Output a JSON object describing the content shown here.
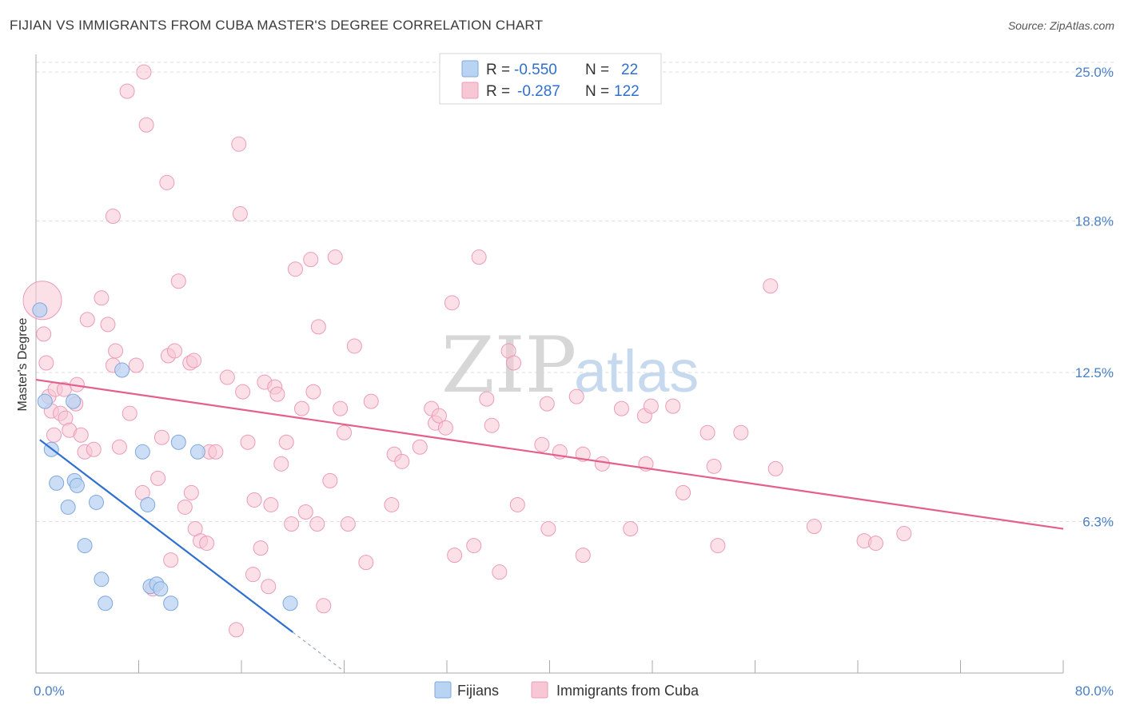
{
  "title": "FIJIAN VS IMMIGRANTS FROM CUBA MASTER'S DEGREE CORRELATION CHART",
  "source": "Source: ZipAtlas.com",
  "colors": {
    "fijians_fill": "#b9d3f2",
    "fijians_stroke": "#7ea8de",
    "fijians_line": "#2e6fd1",
    "cuba_fill": "#f7c7d6",
    "cuba_stroke": "#ec9bb6",
    "cuba_line": "#e55f8d",
    "grid": "#dddddd",
    "tick_text": "#4a7fc9"
  },
  "legend": {
    "row1": {
      "r_label": "R =",
      "r_value": "-0.550",
      "n_label": "N =",
      "n_value": "22"
    },
    "row2": {
      "r_label": "R =",
      "r_value": "-0.287",
      "n_label": "N =",
      "n_value": "122"
    }
  },
  "bottom_legend": {
    "series1": "Fijians",
    "series2": "Immigrants from Cuba"
  },
  "watermark": {
    "zip": "ZIP",
    "atlas": "atlas"
  },
  "chart_data": {
    "type": "scatter",
    "xlabel": "",
    "ylabel": "Master's Degree",
    "xlim": [
      0,
      80
    ],
    "ylim": [
      0,
      26
    ],
    "x_tick_labels": [
      "0.0%",
      "80.0%"
    ],
    "y_ticks": [
      6.3,
      12.5,
      18.8,
      25.0
    ],
    "y_tick_labels": [
      "6.3%",
      "12.5%",
      "18.8%",
      "25.0%"
    ],
    "series": [
      {
        "name": "Fijians",
        "R": -0.55,
        "N": 22,
        "points": [
          [
            0.3,
            15.1
          ],
          [
            0.7,
            11.3
          ],
          [
            1.2,
            9.3
          ],
          [
            1.6,
            7.9
          ],
          [
            2.5,
            6.9
          ],
          [
            2.9,
            11.3
          ],
          [
            3.0,
            8.0
          ],
          [
            3.2,
            7.8
          ],
          [
            3.8,
            5.3
          ],
          [
            4.7,
            7.1
          ],
          [
            5.1,
            3.9
          ],
          [
            5.4,
            2.9
          ],
          [
            6.7,
            12.6
          ],
          [
            8.3,
            9.2
          ],
          [
            8.7,
            7.0
          ],
          [
            8.9,
            3.6
          ],
          [
            9.4,
            3.7
          ],
          [
            9.7,
            3.5
          ],
          [
            10.5,
            2.9
          ],
          [
            11.1,
            9.6
          ],
          [
            12.6,
            9.2
          ],
          [
            19.8,
            2.9
          ]
        ],
        "trend": {
          "x0": 0.3,
          "y0": 9.7,
          "x1": 20.0,
          "y1": 1.7,
          "x1_dashed": 23.8,
          "y1_dashed": 0.15
        }
      },
      {
        "name": "Immigrants from Cuba",
        "R": -0.287,
        "N": 122,
        "points": [
          [
            0.5,
            15.5
          ],
          [
            0.6,
            14.1
          ],
          [
            0.8,
            12.9
          ],
          [
            1.0,
            11.5
          ],
          [
            1.2,
            10.9
          ],
          [
            1.4,
            9.9
          ],
          [
            1.5,
            11.8
          ],
          [
            1.9,
            10.8
          ],
          [
            2.2,
            11.8
          ],
          [
            2.3,
            10.6
          ],
          [
            2.6,
            10.1
          ],
          [
            3.1,
            11.2
          ],
          [
            3.2,
            12.0
          ],
          [
            3.5,
            9.9
          ],
          [
            3.8,
            9.2
          ],
          [
            4.0,
            14.7
          ],
          [
            4.5,
            9.3
          ],
          [
            5.1,
            15.6
          ],
          [
            5.6,
            14.5
          ],
          [
            6.0,
            12.8
          ],
          [
            6.2,
            13.4
          ],
          [
            6.5,
            9.4
          ],
          [
            6.0,
            19.0
          ],
          [
            7.1,
            24.2
          ],
          [
            7.3,
            10.8
          ],
          [
            7.8,
            12.8
          ],
          [
            8.3,
            7.5
          ],
          [
            8.4,
            25.0
          ],
          [
            8.6,
            22.8
          ],
          [
            9.1,
            3.5
          ],
          [
            9.5,
            8.1
          ],
          [
            9.8,
            9.8
          ],
          [
            10.2,
            20.4
          ],
          [
            10.3,
            13.2
          ],
          [
            10.8,
            13.4
          ],
          [
            10.5,
            4.7
          ],
          [
            11.1,
            16.3
          ],
          [
            11.6,
            6.9
          ],
          [
            12.0,
            12.9
          ],
          [
            12.3,
            13.0
          ],
          [
            12.1,
            7.5
          ],
          [
            12.4,
            6.0
          ],
          [
            12.8,
            5.5
          ],
          [
            13.3,
            5.4
          ],
          [
            13.5,
            9.2
          ],
          [
            14.0,
            9.2
          ],
          [
            14.9,
            12.3
          ],
          [
            15.6,
            1.8
          ],
          [
            15.8,
            22.0
          ],
          [
            15.9,
            19.1
          ],
          [
            16.1,
            11.7
          ],
          [
            16.5,
            9.6
          ],
          [
            16.9,
            4.1
          ],
          [
            17.0,
            7.2
          ],
          [
            17.5,
            5.2
          ],
          [
            17.8,
            12.1
          ],
          [
            18.1,
            3.6
          ],
          [
            18.3,
            7.0
          ],
          [
            18.6,
            11.9
          ],
          [
            18.8,
            11.6
          ],
          [
            19.1,
            8.7
          ],
          [
            19.5,
            9.6
          ],
          [
            19.9,
            6.2
          ],
          [
            20.2,
            16.8
          ],
          [
            20.7,
            11.0
          ],
          [
            21.0,
            6.7
          ],
          [
            21.4,
            17.2
          ],
          [
            21.6,
            11.7
          ],
          [
            21.9,
            6.2
          ],
          [
            22.0,
            14.4
          ],
          [
            22.4,
            2.8
          ],
          [
            22.9,
            8.0
          ],
          [
            23.3,
            17.3
          ],
          [
            23.7,
            11.0
          ],
          [
            24.0,
            10.0
          ],
          [
            24.3,
            6.2
          ],
          [
            24.8,
            13.6
          ],
          [
            25.7,
            4.6
          ],
          [
            26.1,
            11.3
          ],
          [
            27.7,
            7.0
          ],
          [
            27.9,
            9.1
          ],
          [
            28.5,
            8.8
          ],
          [
            29.9,
            9.4
          ],
          [
            30.8,
            11.0
          ],
          [
            31.1,
            10.4
          ],
          [
            31.4,
            10.7
          ],
          [
            31.9,
            10.2
          ],
          [
            32.4,
            15.4
          ],
          [
            32.6,
            4.9
          ],
          [
            34.1,
            5.3
          ],
          [
            34.5,
            17.3
          ],
          [
            35.1,
            11.4
          ],
          [
            35.5,
            10.3
          ],
          [
            36.1,
            4.2
          ],
          [
            36.8,
            13.4
          ],
          [
            37.2,
            12.9
          ],
          [
            37.5,
            7.0
          ],
          [
            39.4,
            9.5
          ],
          [
            39.8,
            11.2
          ],
          [
            39.9,
            6.0
          ],
          [
            40.8,
            9.2
          ],
          [
            42.1,
            11.5
          ],
          [
            42.6,
            4.9
          ],
          [
            42.6,
            9.1
          ],
          [
            44.1,
            8.7
          ],
          [
            45.6,
            11.0
          ],
          [
            46.3,
            6.0
          ],
          [
            47.4,
            10.7
          ],
          [
            47.5,
            8.7
          ],
          [
            47.9,
            11.1
          ],
          [
            49.6,
            11.1
          ],
          [
            50.4,
            7.5
          ],
          [
            52.3,
            10.0
          ],
          [
            52.8,
            8.6
          ],
          [
            53.1,
            5.3
          ],
          [
            54.9,
            10.0
          ],
          [
            57.2,
            16.1
          ],
          [
            57.6,
            8.5
          ],
          [
            60.6,
            6.1
          ],
          [
            64.5,
            5.5
          ],
          [
            65.4,
            5.4
          ],
          [
            67.6,
            5.8
          ]
        ],
        "trend": {
          "x0": 0.0,
          "y0": 12.2,
          "x1": 80.0,
          "y1": 6.0
        }
      }
    ]
  }
}
